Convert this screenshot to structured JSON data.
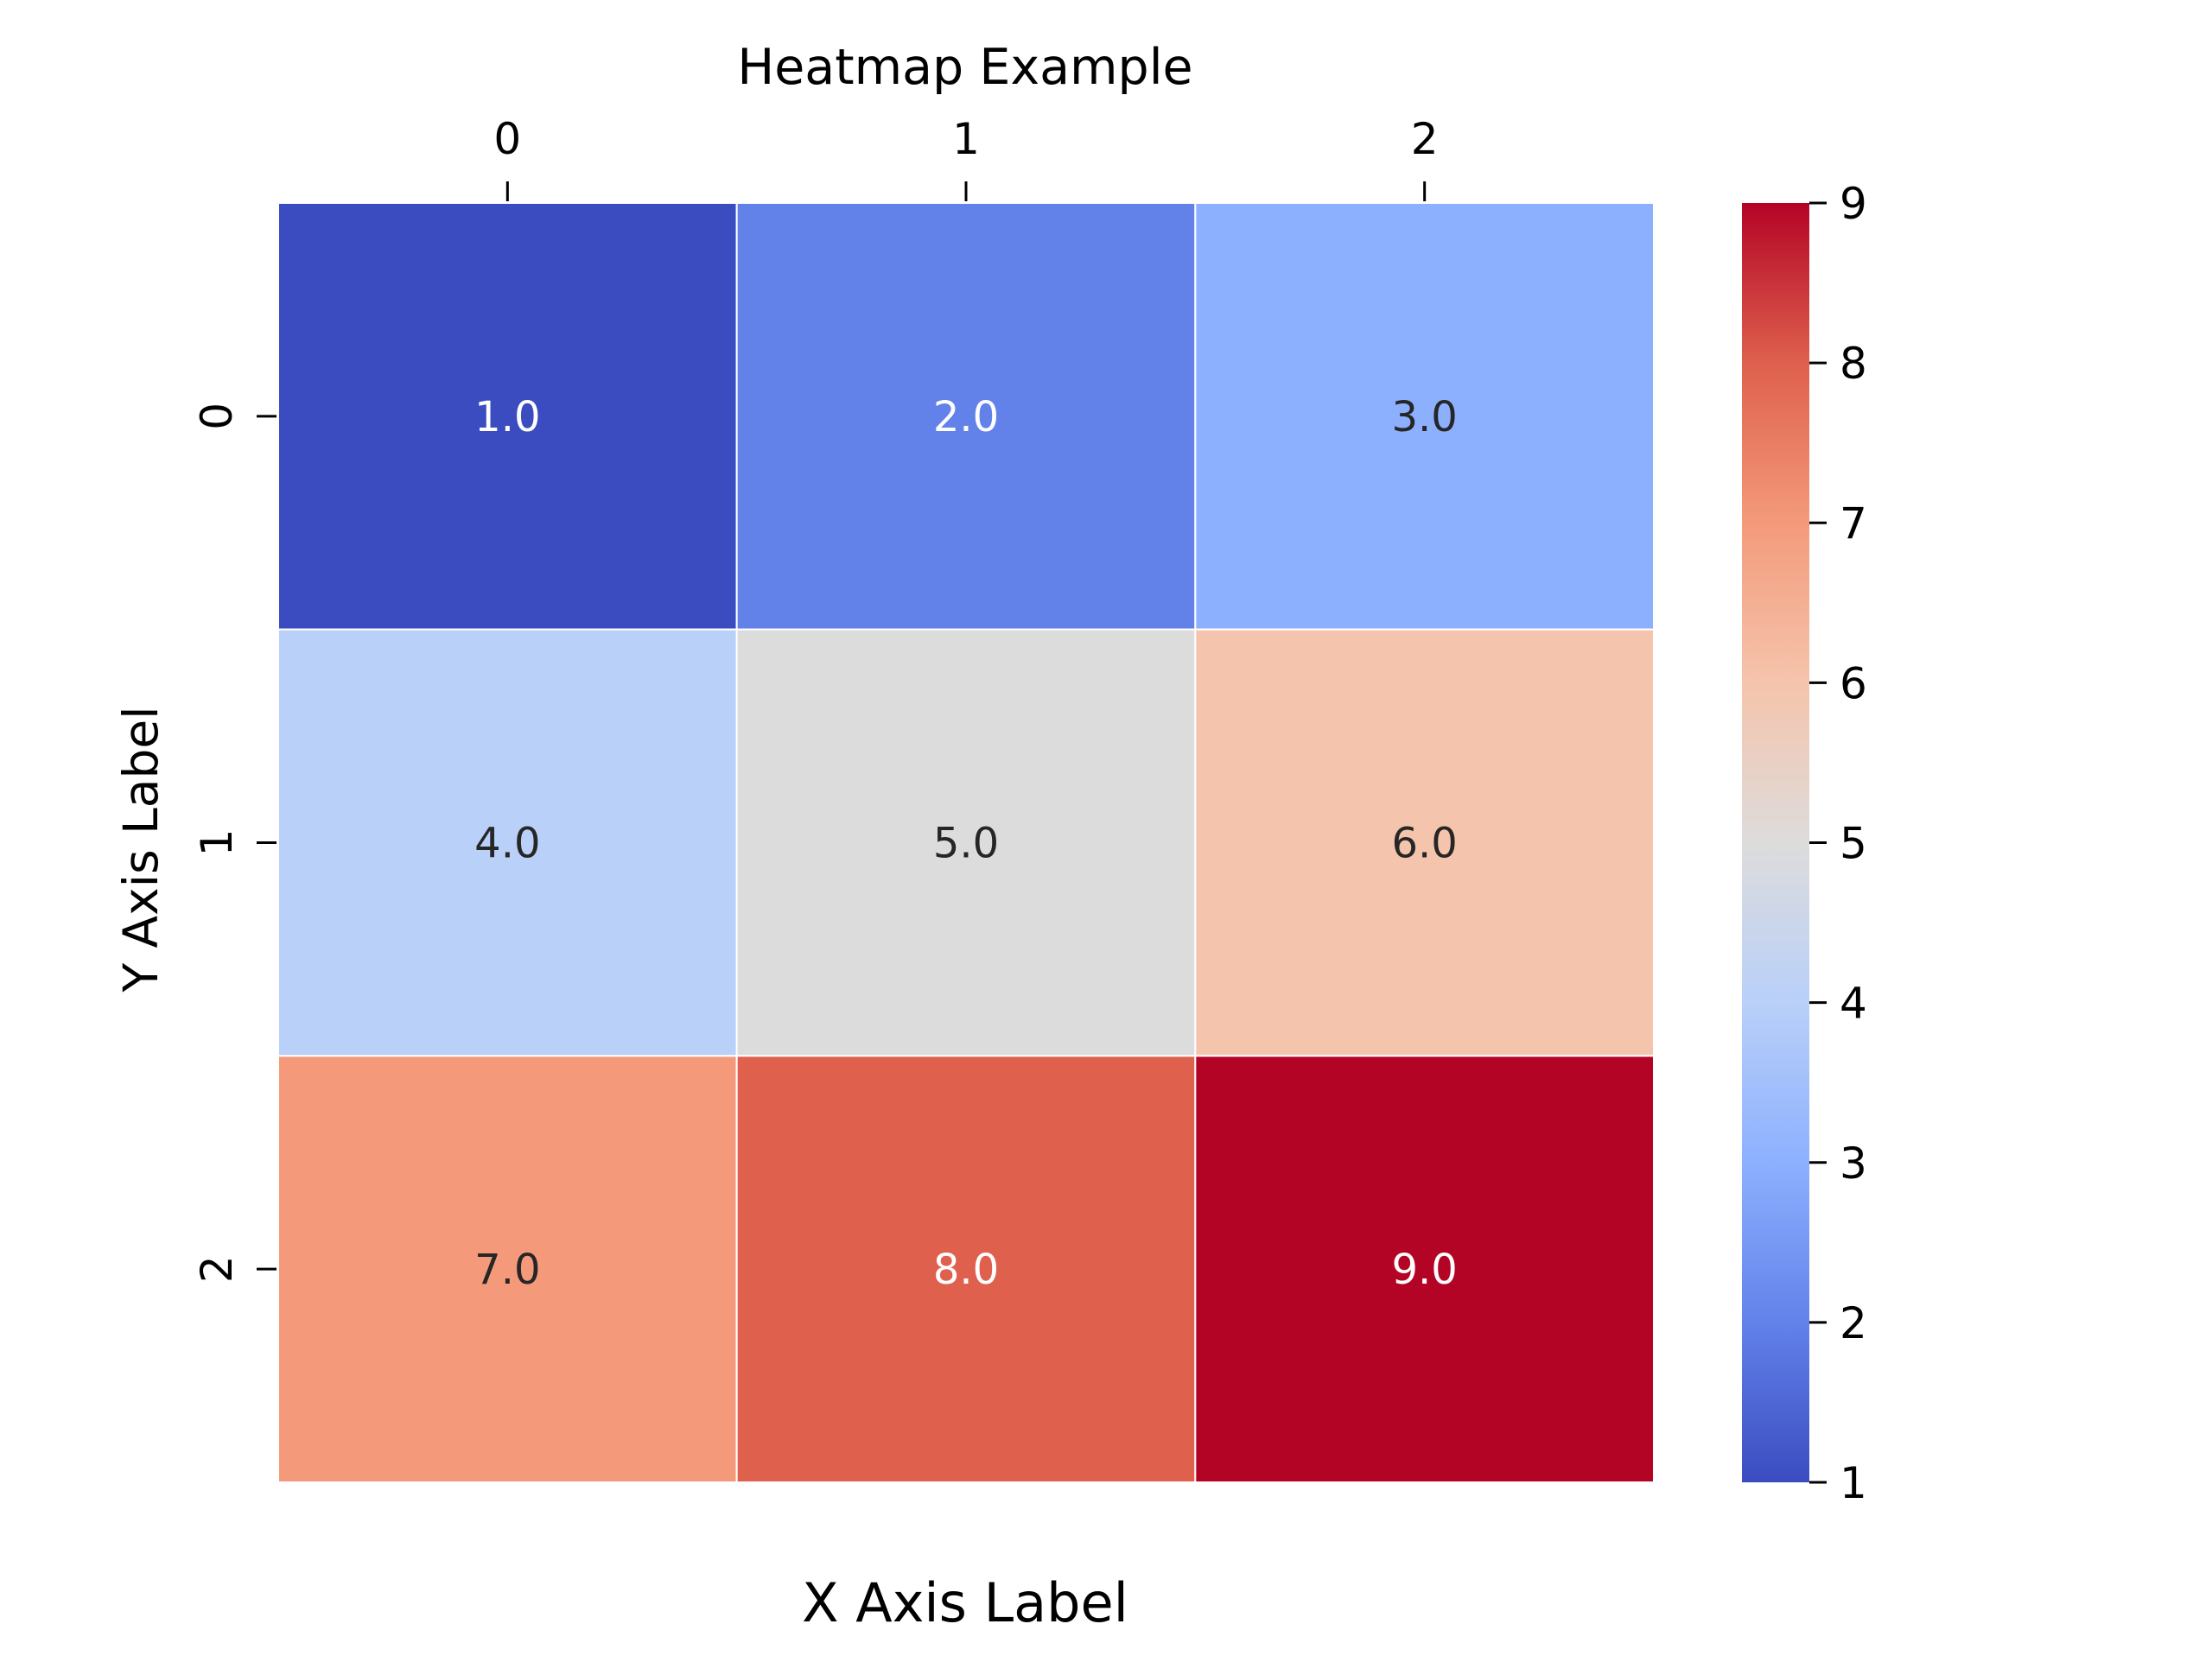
{
  "chart_data": {
    "type": "heatmap",
    "title": "Heatmap Example",
    "xlabel": "X Axis Label",
    "ylabel": "Y Axis Label",
    "x_categories": [
      "0",
      "1",
      "2"
    ],
    "y_categories": [
      "0",
      "1",
      "2"
    ],
    "x_tick_position": "top",
    "values": [
      [
        1.0,
        2.0,
        3.0
      ],
      [
        4.0,
        5.0,
        6.0
      ],
      [
        7.0,
        8.0,
        9.0
      ]
    ],
    "cell_labels": [
      [
        "1.0",
        "2.0",
        "3.0"
      ],
      [
        "4.0",
        "5.0",
        "6.0"
      ],
      [
        "7.0",
        "8.0",
        "9.0"
      ]
    ],
    "colormap": "coolwarm",
    "colorbar": {
      "min": 1,
      "max": 9,
      "ticks": [
        1,
        2,
        3,
        4,
        5,
        6,
        7,
        8,
        9
      ],
      "tick_labels": [
        "1",
        "2",
        "3",
        "4",
        "5",
        "6",
        "7",
        "8",
        "9"
      ]
    },
    "colormap_stops": [
      {
        "value": 1,
        "color": "#3b4cc0"
      },
      {
        "value": 2,
        "color": "#6282ea"
      },
      {
        "value": 3,
        "color": "#8db0fe"
      },
      {
        "value": 4,
        "color": "#b9d0f9"
      },
      {
        "value": 5,
        "color": "#dddcdc"
      },
      {
        "value": 6,
        "color": "#f5c4ac"
      },
      {
        "value": 7,
        "color": "#f49a7b"
      },
      {
        "value": 8,
        "color": "#de604d"
      },
      {
        "value": 9,
        "color": "#b40426"
      }
    ],
    "cell_border_color": "#ffffff",
    "dark_text_color": "#262626",
    "light_text_color": "#ffffff",
    "grid": false
  }
}
